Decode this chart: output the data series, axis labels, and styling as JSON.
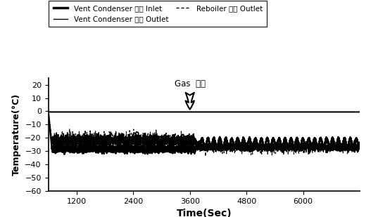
{
  "xlabel": "Time(Sec)",
  "ylabel": "Temperature(°C)",
  "xlim": [
    600,
    7200
  ],
  "ylim": [
    -60,
    25
  ],
  "yticks": [
    20,
    10,
    0,
    -10,
    -20,
    -30,
    -40,
    -50,
    -60
  ],
  "xticks": [
    1200,
    2400,
    3600,
    4800,
    6000
  ],
  "gas_injection_x": 3600,
  "gas_injection_label": "Gas  주입",
  "legend_labels": [
    "Vent Condenser 낙매 Inlet",
    "Vent Condenser 낙매 Outlet",
    "Reboiler 낙매 Outlet"
  ],
  "background_color": "#ffffff",
  "inlet_steady": -28.5,
  "inlet_amplitude": 1.2,
  "outlet_near_zero": -0.5,
  "reboiler_steady": -22,
  "reboiler_amplitude": 2.5,
  "phase_change_x": 3700,
  "inlet_after_base": -24,
  "inlet_after_amplitude": 3.5,
  "reboiler_after_base": -27
}
